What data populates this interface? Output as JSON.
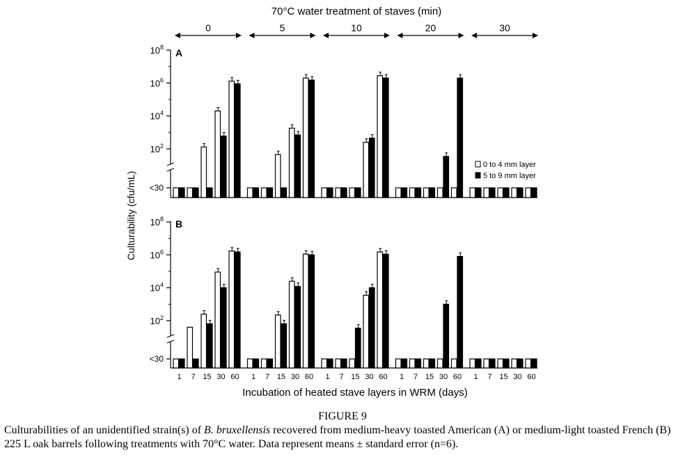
{
  "figure": {
    "top_title": "70°C water treatment of staves (min)",
    "treatments": [
      "0",
      "5",
      "10",
      "20",
      "30"
    ],
    "ylabel": "Culturability (cfu/mL)",
    "xlabel": "Incubation of heated stave layers in WRM (days)",
    "below_label": "<30",
    "panels": [
      "A",
      "B"
    ],
    "legend": [
      "0 to 4 mm layer",
      "5 to 9 mm layer"
    ]
  },
  "caption": {
    "title": "FIGURE 9",
    "text_before": "Culturabilities of an unidentified strain(s) of ",
    "italic": "B. bruxellensis",
    "text_after": " recovered from medium-heavy toasted American (A) or medium-light toasted French (B) 225 L oak barrels following treatments with 70°C water. Data represent means ± standard error (n=6)."
  },
  "chart_data": [
    {
      "type": "bar",
      "panel": "A",
      "scale": "log",
      "ylim": [
        30,
        100000000
      ],
      "yticks": [
        "10^2",
        "10^4",
        "10^6",
        "10^8"
      ],
      "groups": [
        "0",
        "5",
        "10",
        "20",
        "30"
      ],
      "categories": [
        "1",
        "7",
        "15",
        "30",
        "60"
      ],
      "series": [
        {
          "name": "0 to 4 mm layer",
          "color": "#ffffff",
          "values": [
            [
              0,
              0,
              130,
              20000,
              1300000
            ],
            [
              0,
              0,
              45,
              1800,
              2000000
            ],
            [
              0,
              0,
              0,
              250,
              2800000
            ],
            [
              0,
              0,
              0,
              0,
              0
            ],
            [
              0,
              0,
              0,
              0,
              0
            ]
          ]
        },
        {
          "name": "5 to 9 mm layer",
          "color": "#000000",
          "values": [
            [
              0,
              0,
              20,
              600,
              900000
            ],
            [
              0,
              0,
              20,
              700,
              1500000
            ],
            [
              0,
              20,
              20,
              450,
              2000000
            ],
            [
              0,
              0,
              0,
              35,
              2000000
            ],
            [
              0,
              0,
              0,
              0,
              0
            ]
          ]
        }
      ]
    },
    {
      "type": "bar",
      "panel": "B",
      "scale": "log",
      "ylim": [
        30,
        100000000
      ],
      "yticks": [
        "10^2",
        "10^4",
        "10^6",
        "10^8"
      ],
      "groups": [
        "0",
        "5",
        "10",
        "20",
        "30"
      ],
      "categories": [
        "1",
        "7",
        "15",
        "30",
        "60"
      ],
      "series": [
        {
          "name": "0 to 4 mm layer",
          "color": "#ffffff",
          "values": [
            [
              0,
              40,
              250,
              90000,
              1700000
            ],
            [
              0,
              0,
              220,
              25000,
              1100000
            ],
            [
              0,
              0,
              0,
              3500,
              1500000
            ],
            [
              0,
              0,
              0,
              0,
              0
            ],
            [
              0,
              0,
              0,
              0,
              0
            ]
          ]
        },
        {
          "name": "5 to 9 mm layer",
          "color": "#000000",
          "values": [
            [
              0,
              0,
              65,
              10000,
              1500000
            ],
            [
              0,
              0,
              65,
              12000,
              1000000
            ],
            [
              0,
              0,
              35,
              10000,
              1100000
            ],
            [
              0,
              0,
              0,
              1000,
              800000
            ],
            [
              0,
              0,
              0,
              0,
              0
            ]
          ]
        }
      ]
    }
  ]
}
